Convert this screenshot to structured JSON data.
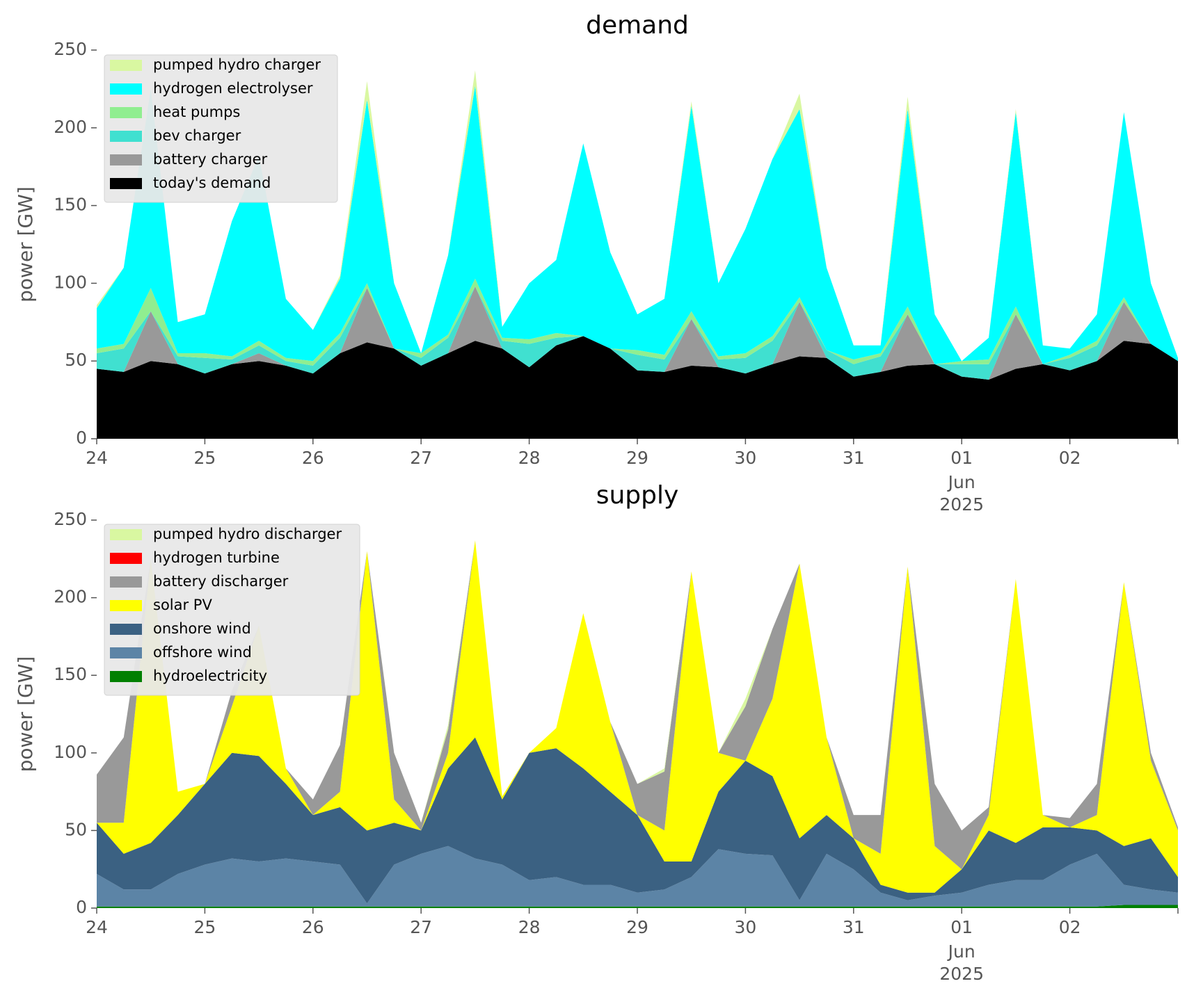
{
  "chart_data": [
    {
      "type": "area",
      "stacked": true,
      "title": "demand",
      "ylabel": "power [GW]",
      "legend": "upper left",
      "x": [
        "2025-05-24T00:00",
        "2025-05-24T06:00",
        "2025-05-24T12:00",
        "2025-05-24T18:00",
        "2025-05-25T00:00",
        "2025-05-25T06:00",
        "2025-05-25T12:00",
        "2025-05-25T18:00",
        "2025-05-26T00:00",
        "2025-05-26T06:00",
        "2025-05-26T12:00",
        "2025-05-26T18:00",
        "2025-05-27T00:00",
        "2025-05-27T06:00",
        "2025-05-27T12:00",
        "2025-05-27T18:00",
        "2025-05-28T00:00",
        "2025-05-28T06:00",
        "2025-05-28T12:00",
        "2025-05-28T18:00",
        "2025-05-29T00:00",
        "2025-05-29T06:00",
        "2025-05-29T12:00",
        "2025-05-29T18:00",
        "2025-05-30T00:00",
        "2025-05-30T06:00",
        "2025-05-30T12:00",
        "2025-05-30T18:00",
        "2025-05-31T00:00",
        "2025-05-31T06:00",
        "2025-05-31T12:00",
        "2025-05-31T18:00",
        "2025-06-01T00:00",
        "2025-06-01T06:00",
        "2025-06-01T12:00",
        "2025-06-01T18:00",
        "2025-06-02T00:00",
        "2025-06-02T06:00",
        "2025-06-02T12:00",
        "2025-06-02T18:00",
        "2025-06-03T00:00"
      ],
      "xlim": [
        "2025-05-24T00:00",
        "2025-06-03T00:00"
      ],
      "xticks": [
        {
          "value": "2025-05-24T00:00",
          "label": "24"
        },
        {
          "value": "2025-05-25T00:00",
          "label": "25"
        },
        {
          "value": "2025-05-26T00:00",
          "label": "26"
        },
        {
          "value": "2025-05-27T00:00",
          "label": "27"
        },
        {
          "value": "2025-05-28T00:00",
          "label": "28"
        },
        {
          "value": "2025-05-29T00:00",
          "label": "29"
        },
        {
          "value": "2025-05-30T00:00",
          "label": "30"
        },
        {
          "value": "2025-05-31T00:00",
          "label": "31"
        },
        {
          "value": "2025-06-01T00:00",
          "label": "01"
        },
        {
          "value": "2025-06-02T00:00",
          "label": "02"
        },
        {
          "value": "2025-06-03T00:00",
          "label": null
        }
      ],
      "date_offset": [
        "Jun",
        "2025"
      ],
      "ylim": [
        0,
        250
      ],
      "yticks": [
        0,
        50,
        100,
        150,
        200,
        250
      ],
      "series": [
        {
          "name": "pumped hydro charger",
          "color": "#d9f7a1",
          "values": [
            2,
            0,
            0,
            0,
            0,
            0,
            0,
            0,
            0,
            2,
            12,
            0,
            0,
            0,
            10,
            0,
            0,
            0,
            0,
            0,
            0,
            0,
            3,
            0,
            0,
            0,
            10,
            0,
            0,
            0,
            8,
            0,
            0,
            0,
            2,
            0,
            0,
            0,
            0,
            0,
            0
          ]
        },
        {
          "name": "hydrogen electrolyser",
          "color": "#00ffff",
          "values": [
            26,
            49,
            128,
            20,
            25,
            87,
            119,
            38,
            20,
            35,
            118,
            42,
            0,
            51,
            124,
            7,
            36,
            47,
            124,
            62,
            23,
            36,
            132,
            47,
            80,
            114,
            121,
            53,
            9,
            5,
            127,
            32,
            0,
            14,
            125,
            12,
            4,
            17,
            119,
            39,
            2
          ]
        },
        {
          "name": "heat pumps",
          "color": "#90ee90",
          "values": [
            3,
            3,
            15,
            2,
            3,
            2,
            3,
            2,
            3,
            3,
            3,
            0,
            3,
            2,
            5,
            2,
            3,
            3,
            0,
            0,
            3,
            3,
            5,
            2,
            3,
            3,
            3,
            0,
            3,
            2,
            5,
            0,
            2,
            3,
            5,
            0,
            2,
            3,
            3,
            0,
            0
          ]
        },
        {
          "name": "bev charger",
          "color": "#40e0d0",
          "values": [
            10,
            15,
            0,
            5,
            10,
            3,
            5,
            3,
            5,
            10,
            0,
            0,
            5,
            10,
            0,
            5,
            15,
            5,
            0,
            0,
            10,
            8,
            0,
            5,
            10,
            15,
            0,
            5,
            8,
            10,
            0,
            0,
            8,
            10,
            0,
            0,
            8,
            10,
            0,
            0,
            0
          ]
        },
        {
          "name": "battery charger",
          "color": "#999999",
          "values": [
            0,
            0,
            32,
            0,
            0,
            0,
            5,
            0,
            0,
            0,
            35,
            0,
            0,
            0,
            35,
            0,
            0,
            0,
            0,
            0,
            0,
            0,
            30,
            0,
            0,
            0,
            35,
            0,
            0,
            0,
            33,
            0,
            0,
            0,
            35,
            0,
            0,
            0,
            25,
            0,
            0
          ]
        },
        {
          "name": "today's demand",
          "color": "#000000",
          "values": [
            45,
            43,
            50,
            48,
            42,
            48,
            50,
            47,
            42,
            55,
            62,
            58,
            47,
            55,
            63,
            58,
            46,
            60,
            66,
            58,
            44,
            43,
            47,
            46,
            42,
            48,
            53,
            52,
            40,
            43,
            47,
            48,
            40,
            38,
            45,
            48,
            44,
            50,
            63,
            61,
            50
          ]
        }
      ]
    },
    {
      "type": "area",
      "stacked": true,
      "title": "supply",
      "ylabel": "power [GW]",
      "legend": "upper left",
      "x": [
        "2025-05-24T00:00",
        "2025-05-24T06:00",
        "2025-05-24T12:00",
        "2025-05-24T18:00",
        "2025-05-25T00:00",
        "2025-05-25T06:00",
        "2025-05-25T12:00",
        "2025-05-25T18:00",
        "2025-05-26T00:00",
        "2025-05-26T06:00",
        "2025-05-26T12:00",
        "2025-05-26T18:00",
        "2025-05-27T00:00",
        "2025-05-27T06:00",
        "2025-05-27T12:00",
        "2025-05-27T18:00",
        "2025-05-28T00:00",
        "2025-05-28T06:00",
        "2025-05-28T12:00",
        "2025-05-28T18:00",
        "2025-05-29T00:00",
        "2025-05-29T06:00",
        "2025-05-29T12:00",
        "2025-05-29T18:00",
        "2025-05-30T00:00",
        "2025-05-30T06:00",
        "2025-05-30T12:00",
        "2025-05-30T18:00",
        "2025-05-31T00:00",
        "2025-05-31T06:00",
        "2025-05-31T12:00",
        "2025-05-31T18:00",
        "2025-06-01T00:00",
        "2025-06-01T06:00",
        "2025-06-01T12:00",
        "2025-06-01T18:00",
        "2025-06-02T00:00",
        "2025-06-02T06:00",
        "2025-06-02T12:00",
        "2025-06-02T18:00",
        "2025-06-03T00:00"
      ],
      "xlim": [
        "2025-05-24T00:00",
        "2025-06-03T00:00"
      ],
      "xticks": [
        {
          "value": "2025-05-24T00:00",
          "label": "24"
        },
        {
          "value": "2025-05-25T00:00",
          "label": "25"
        },
        {
          "value": "2025-05-26T00:00",
          "label": "26"
        },
        {
          "value": "2025-05-27T00:00",
          "label": "27"
        },
        {
          "value": "2025-05-28T00:00",
          "label": "28"
        },
        {
          "value": "2025-05-29T00:00",
          "label": "29"
        },
        {
          "value": "2025-05-30T00:00",
          "label": "30"
        },
        {
          "value": "2025-05-31T00:00",
          "label": "31"
        },
        {
          "value": "2025-06-01T00:00",
          "label": "01"
        },
        {
          "value": "2025-06-02T00:00",
          "label": "02"
        },
        {
          "value": "2025-06-03T00:00",
          "label": null
        }
      ],
      "date_offset": [
        "Jun",
        "2025"
      ],
      "ylim": [
        0,
        250
      ],
      "yticks": [
        0,
        50,
        100,
        150,
        200,
        250
      ],
      "series": [
        {
          "name": "pumped hydro discharger",
          "color": "#d9f7a1",
          "values": [
            0,
            0,
            0,
            0,
            0,
            0,
            0,
            0,
            0,
            0,
            0,
            0,
            0,
            3,
            0,
            0,
            0,
            0,
            0,
            0,
            0,
            2,
            0,
            0,
            5,
            0,
            0,
            0,
            0,
            0,
            0,
            0,
            0,
            0,
            0,
            0,
            0,
            0,
            0,
            0,
            0
          ]
        },
        {
          "name": "hydrogen turbine",
          "color": "#ff0000",
          "values": [
            0,
            0,
            0,
            0,
            0,
            0,
            0,
            0,
            0,
            0,
            0,
            0,
            0,
            0,
            0,
            0,
            0,
            0,
            0,
            0,
            0,
            0,
            0,
            0,
            0,
            0,
            0,
            0,
            0,
            0,
            0,
            0,
            0,
            0,
            0,
            0,
            0,
            0,
            0,
            0,
            0
          ]
        },
        {
          "name": "battery discharger",
          "color": "#999999",
          "values": [
            31,
            55,
            0,
            0,
            0,
            10,
            0,
            0,
            10,
            30,
            0,
            30,
            5,
            15,
            0,
            0,
            0,
            0,
            0,
            0,
            20,
            38,
            0,
            0,
            35,
            45,
            0,
            0,
            15,
            25,
            0,
            40,
            25,
            5,
            0,
            0,
            6,
            20,
            0,
            5,
            2
          ]
        },
        {
          "name": "solar PV",
          "color": "#ffff00",
          "values": [
            0,
            20,
            183,
            15,
            0,
            30,
            84,
            10,
            0,
            10,
            180,
            15,
            0,
            10,
            127,
            2,
            0,
            13,
            100,
            45,
            0,
            20,
            187,
            25,
            0,
            50,
            177,
            50,
            0,
            20,
            210,
            30,
            0,
            10,
            170,
            8,
            0,
            10,
            170,
            50,
            30
          ]
        },
        {
          "name": "onshore wind",
          "color": "#3b6182",
          "values": [
            33,
            23,
            30,
            38,
            52,
            68,
            68,
            48,
            30,
            37,
            47,
            27,
            15,
            50,
            78,
            42,
            82,
            83,
            75,
            60,
            50,
            18,
            10,
            37,
            60,
            51,
            40,
            25,
            20,
            5,
            5,
            2,
            15,
            35,
            24,
            34,
            24,
            15,
            25,
            33,
            10
          ]
        },
        {
          "name": "offshore wind",
          "color": "#5c84a6",
          "values": [
            21,
            11,
            11,
            21,
            27,
            31,
            29,
            31,
            29,
            27,
            2,
            27,
            34,
            39,
            31,
            27,
            17,
            19,
            14,
            14,
            9,
            11,
            19,
            37,
            34,
            33,
            4,
            34,
            24,
            9,
            4,
            7,
            9,
            14,
            17,
            17,
            27,
            34,
            13,
            10,
            8
          ]
        },
        {
          "name": "hydroelectricity",
          "color": "#008000",
          "values": [
            1,
            1,
            1,
            1,
            1,
            1,
            1,
            1,
            1,
            1,
            1,
            1,
            1,
            1,
            1,
            1,
            1,
            1,
            1,
            1,
            1,
            1,
            1,
            1,
            1,
            1,
            1,
            1,
            1,
            1,
            1,
            1,
            1,
            1,
            1,
            1,
            1,
            1,
            2,
            2,
            2
          ]
        }
      ]
    }
  ]
}
